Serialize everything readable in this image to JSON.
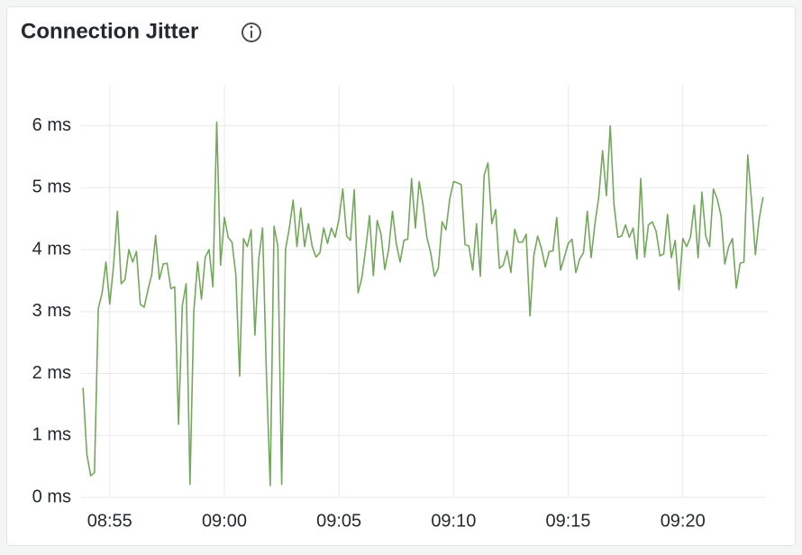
{
  "chart_data": {
    "type": "line",
    "title": "Connection Jitter",
    "x": [
      32030,
      32040,
      32050,
      32060,
      32070,
      32080,
      32090,
      32100,
      32110,
      32120,
      32130,
      32140,
      32150,
      32160,
      32170,
      32180,
      32190,
      32200,
      32210,
      32220,
      32230,
      32240,
      32250,
      32260,
      32270,
      32280,
      32290,
      32300,
      32310,
      32320,
      32330,
      32340,
      32350,
      32360,
      32370,
      32380,
      32390,
      32400,
      32410,
      32420,
      32430,
      32440,
      32450,
      32460,
      32470,
      32480,
      32490,
      32500,
      32510,
      32520,
      32530,
      32540,
      32550,
      32560,
      32570,
      32580,
      32590,
      32600,
      32610,
      32620,
      32630,
      32640,
      32650,
      32660,
      32670,
      32680,
      32690,
      32700,
      32710,
      32720,
      32730,
      32740,
      32750,
      32760,
      32770,
      32780,
      32790,
      32800,
      32810,
      32820,
      32830,
      32840,
      32850,
      32860,
      32870,
      32880,
      32890,
      32900,
      32910,
      32920,
      32930,
      32940,
      32950,
      32960,
      32970,
      32980,
      32990,
      33000,
      33010,
      33020,
      33030,
      33040,
      33050,
      33060,
      33070,
      33080,
      33090,
      33100,
      33110,
      33120,
      33130,
      33140,
      33150,
      33160,
      33170,
      33180,
      33190,
      33200,
      33210,
      33220,
      33230,
      33240,
      33250,
      33260,
      33270,
      33280,
      33290,
      33300,
      33310,
      33320,
      33330,
      33340,
      33350,
      33360,
      33370,
      33380,
      33390,
      33400,
      33410,
      33420,
      33430,
      33440,
      33450,
      33460,
      33470,
      33480,
      33490,
      33500,
      33510,
      33520,
      33530,
      33540,
      33550,
      33560,
      33570,
      33580,
      33590,
      33600,
      33610,
      33620,
      33630,
      33640,
      33650,
      33660,
      33670,
      33680,
      33690,
      33700,
      33710,
      33720,
      33730,
      33740,
      33750,
      33760,
      33770,
      33780,
      33790,
      33800,
      33810
    ],
    "series": [
      {
        "color": "#73a85c",
        "values": [
          1.77,
          0.7,
          0.35,
          0.4,
          3.05,
          3.3,
          3.8,
          3.12,
          3.75,
          4.62,
          3.45,
          3.52,
          4.0,
          3.8,
          3.97,
          3.12,
          3.07,
          3.35,
          3.6,
          4.23,
          3.52,
          3.77,
          3.78,
          3.37,
          3.4,
          1.18,
          3.1,
          3.45,
          0.21,
          3.0,
          3.8,
          3.2,
          3.88,
          4.0,
          3.4,
          6.06,
          3.75,
          4.52,
          4.2,
          4.12,
          3.6,
          1.96,
          4.18,
          4.05,
          4.32,
          2.62,
          3.85,
          4.35,
          2.0,
          0.19,
          4.38,
          4.05,
          0.21,
          4.0,
          4.35,
          4.8,
          4.05,
          4.67,
          4.05,
          4.42,
          4.05,
          3.88,
          3.95,
          4.35,
          4.1,
          4.35,
          4.2,
          4.5,
          4.98,
          4.22,
          4.15,
          4.97,
          3.3,
          3.55,
          4.02,
          4.55,
          3.58,
          4.47,
          4.25,
          3.68,
          4.0,
          4.62,
          4.1,
          3.8,
          4.15,
          4.17,
          5.15,
          4.35,
          5.1,
          4.72,
          4.2,
          3.95,
          3.57,
          3.7,
          4.45,
          4.32,
          4.82,
          5.1,
          5.08,
          5.05,
          4.08,
          4.06,
          3.67,
          4.42,
          3.57,
          5.2,
          5.4,
          4.42,
          4.65,
          3.7,
          3.75,
          3.98,
          3.63,
          4.33,
          4.12,
          4.12,
          4.25,
          2.93,
          3.9,
          4.22,
          4.02,
          3.72,
          3.97,
          3.98,
          4.52,
          3.67,
          3.88,
          4.1,
          4.17,
          3.63,
          3.85,
          3.95,
          4.62,
          3.87,
          4.42,
          4.85,
          5.6,
          4.87,
          6.0,
          4.72,
          4.2,
          4.22,
          4.4,
          4.2,
          4.35,
          3.85,
          5.15,
          3.88,
          4.4,
          4.45,
          4.3,
          3.9,
          3.93,
          4.57,
          3.87,
          4.15,
          3.35,
          4.18,
          4.05,
          4.2,
          4.72,
          3.87,
          4.93,
          4.22,
          4.05,
          4.98,
          4.82,
          4.55,
          3.77,
          4.05,
          4.18,
          3.38,
          3.78,
          3.8,
          5.53,
          4.78,
          3.92,
          4.5,
          4.85
        ]
      }
    ],
    "xlim": [
      32025,
      33820
    ],
    "xticks": [
      {
        "value": 32100,
        "label": "08:55"
      },
      {
        "value": 32400,
        "label": "09:00"
      },
      {
        "value": 32700,
        "label": "09:05"
      },
      {
        "value": 33000,
        "label": "09:10"
      },
      {
        "value": 33300,
        "label": "09:15"
      },
      {
        "value": 33600,
        "label": "09:20"
      }
    ],
    "ylim": [
      0,
      6.65
    ],
    "yticks": [
      {
        "value": 0,
        "label": "0 ms"
      },
      {
        "value": 1,
        "label": "1 ms"
      },
      {
        "value": 2,
        "label": "2 ms"
      },
      {
        "value": 3,
        "label": "3 ms"
      },
      {
        "value": 4,
        "label": "4 ms"
      },
      {
        "value": 5,
        "label": "5 ms"
      },
      {
        "value": 6,
        "label": "6 ms"
      }
    ],
    "grid": true
  }
}
